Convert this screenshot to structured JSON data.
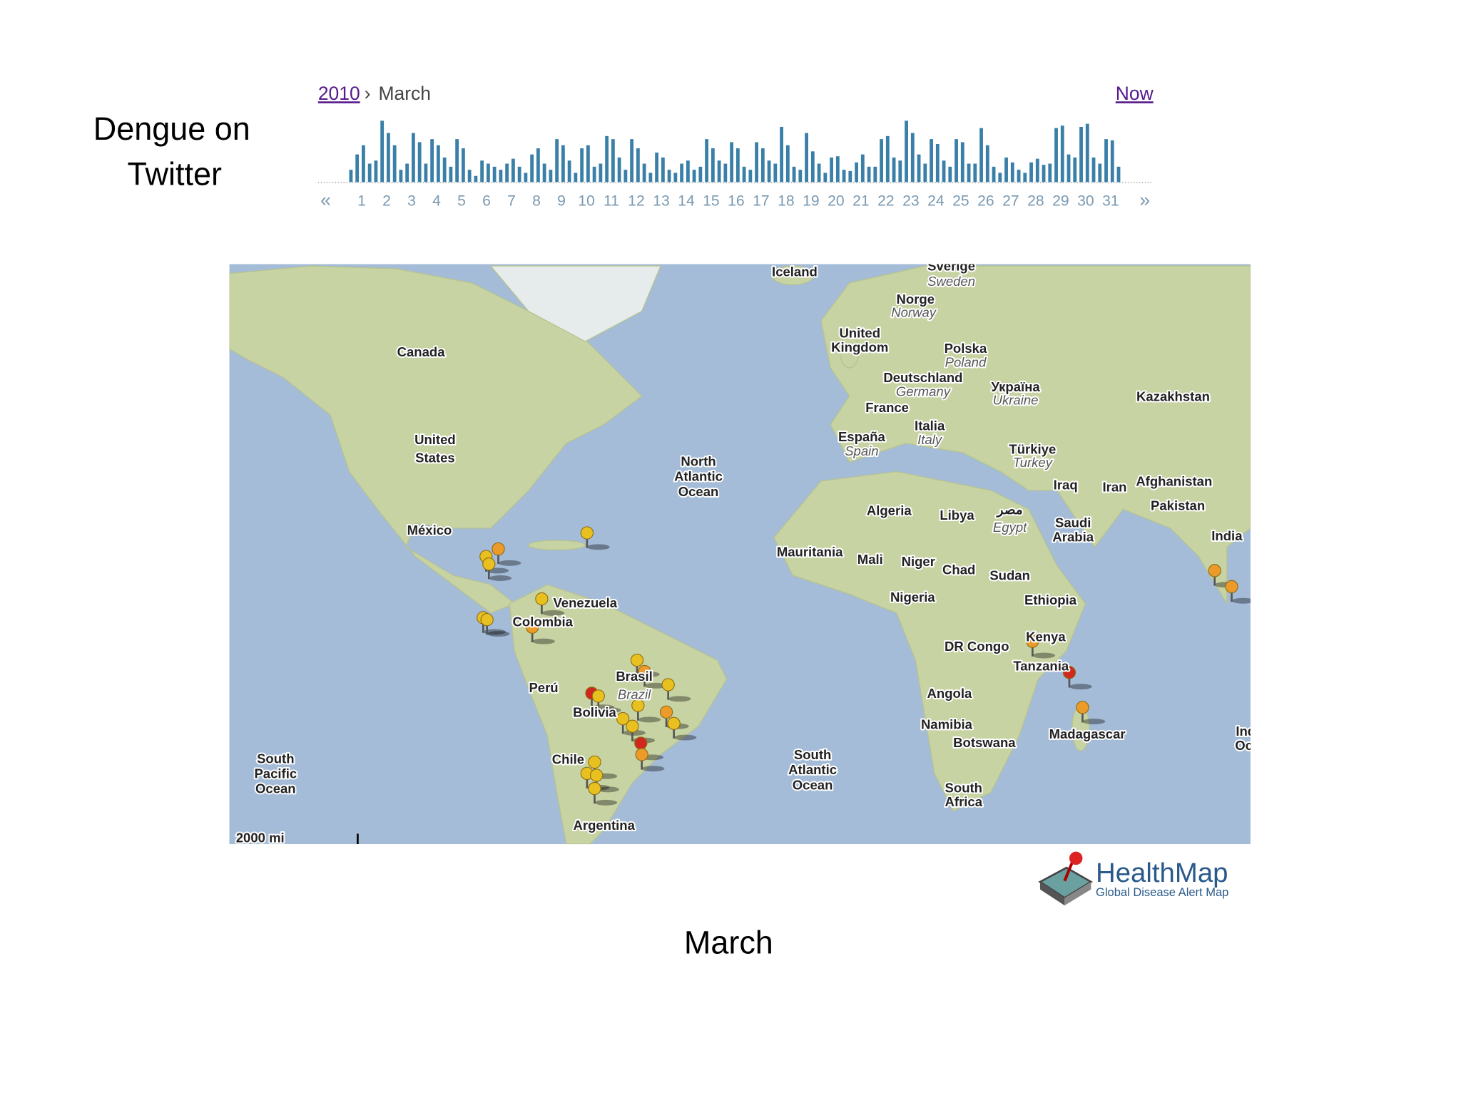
{
  "title": [
    "Dengue on",
    "Twitter"
  ],
  "timeline": {
    "year": "2010",
    "separator": "›",
    "month": "March",
    "now": "Now",
    "prev": "«",
    "next": "»",
    "days": [
      1,
      2,
      3,
      4,
      5,
      6,
      7,
      8,
      9,
      10,
      11,
      12,
      13,
      14,
      15,
      16,
      17,
      18,
      19,
      20,
      21,
      22,
      23,
      24,
      25,
      26,
      27,
      28,
      29,
      30,
      31
    ],
    "values": [
      20,
      45,
      60,
      30,
      35,
      100,
      80,
      60,
      20,
      30,
      80,
      65,
      30,
      70,
      60,
      40,
      25,
      70,
      55,
      20,
      10,
      35,
      30,
      25,
      20,
      30,
      38,
      25,
      15,
      45,
      55,
      30,
      20,
      70,
      60,
      35,
      15,
      55,
      60,
      25,
      30,
      75,
      70,
      40,
      20,
      70,
      55,
      30,
      15,
      48,
      40,
      20,
      15,
      30,
      35,
      20,
      25,
      70,
      55,
      35,
      30,
      65,
      55,
      25,
      20,
      65,
      55,
      35,
      30,
      90,
      60,
      25,
      20,
      80,
      50,
      30,
      15,
      40,
      42,
      20,
      18,
      32,
      45,
      25,
      25,
      70,
      75,
      40,
      35,
      100,
      80,
      45,
      30,
      70,
      62,
      35,
      25,
      70,
      65,
      30,
      30,
      88,
      60,
      25,
      15,
      40,
      32,
      20,
      15,
      32,
      38,
      28,
      30,
      88,
      92,
      45,
      40,
      90,
      95,
      40,
      30,
      70,
      68,
      25
    ],
    "color": "#3a7fa8"
  },
  "map": {
    "labels": [
      "Iceland",
      "Sverige",
      "Sweden",
      "Norge",
      "Norway",
      [
        "United",
        "Kingdom"
      ],
      "Polska",
      "Poland",
      "Deutschland",
      "Germany",
      "France",
      "Italia",
      "Italy",
      "Україна",
      "Ukraine",
      "Kazakhstan",
      "España",
      "Spain",
      "Türkiye",
      "Turkey",
      "Iraq",
      "Iran",
      "Afghanistan",
      "Pakistan",
      "India",
      "Canada",
      [
        "United",
        "States"
      ],
      "México",
      [
        "North",
        "Atlantic",
        "Ocean"
      ],
      "Algeria",
      "Libya",
      "مصر",
      "Egypt",
      [
        "Saudi",
        "Arabia"
      ],
      "Mauritania",
      "Mali",
      "Niger",
      "Chad",
      "Sudan",
      "Nigeria",
      "Ethiopia",
      "Venezuela",
      "Colombia",
      "DR Congo",
      "Kenya",
      "Tanzania",
      "Brasil",
      "Brazil",
      "Perú",
      "Bolivia",
      "Angola",
      "Namibia",
      "Botswana",
      "Madagascar",
      "Chile",
      [
        "South",
        "Atlantic",
        "Ocean"
      ],
      [
        "South",
        "Pacific",
        "Ocean"
      ],
      [
        "South",
        "Africa"
      ],
      "Argentina",
      [
        "Indian",
        "Ocean"
      ]
    ],
    "scale": "2000 mi"
  },
  "logo": {
    "name": "HealthMap",
    "tagline": "Global Disease Alert Map"
  },
  "caption": "March"
}
